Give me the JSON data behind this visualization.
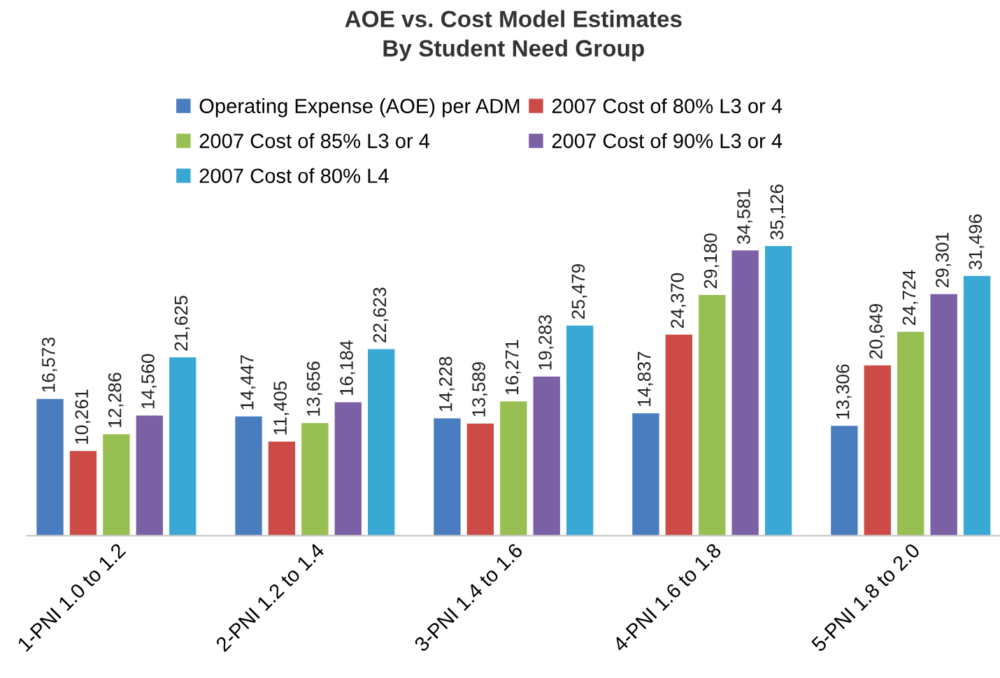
{
  "chart_data": {
    "type": "bar",
    "title": "AOE vs. Cost Model Estimates\nBy Student Need Group",
    "categories": [
      "1-PNI 1.0 to 1.2",
      "2-PNI 1.2 to 1.4",
      "3-PNI 1.4 to 1.6",
      "4-PNI 1.6 to 1.8",
      "5-PNI 1.8 to 2.0"
    ],
    "series": [
      {
        "name": "Operating Expense (AOE) per ADM",
        "color": "#4a7cc0",
        "values": [
          16573,
          14447,
          14228,
          14837,
          13306
        ],
        "value_labels": [
          "16,573",
          "14,447",
          "14,228",
          "14,837",
          "13,306"
        ]
      },
      {
        "name": "2007 Cost of 80% L3 or 4",
        "color": "#cc4b47",
        "values": [
          10261,
          11405,
          13589,
          24370,
          20649
        ],
        "value_labels": [
          "10,261",
          "11,405",
          "13,589",
          "24,370",
          "20,649"
        ]
      },
      {
        "name": "2007 Cost of 85% L3 or 4",
        "color": "#98bf52",
        "values": [
          12286,
          13656,
          16271,
          29180,
          24724
        ],
        "value_labels": [
          "12,286",
          "13,656",
          "16,271",
          "29,180",
          "24,724"
        ]
      },
      {
        "name": "2007 Cost of 90% L3 or 4",
        "color": "#7b60a6",
        "values": [
          14560,
          16184,
          19283,
          34581,
          29301
        ],
        "value_labels": [
          "14,560",
          "16,184",
          "19,283",
          "34,581",
          "29,301"
        ]
      },
      {
        "name": "2007 Cost of 80% L4",
        "color": "#3aa8d4",
        "values": [
          21625,
          22623,
          25479,
          35126,
          31496
        ],
        "value_labels": [
          "21,625",
          "22,623",
          "25,479",
          "35,126",
          "31,496"
        ]
      }
    ],
    "legend": "top",
    "tick_labels": "x"
  }
}
